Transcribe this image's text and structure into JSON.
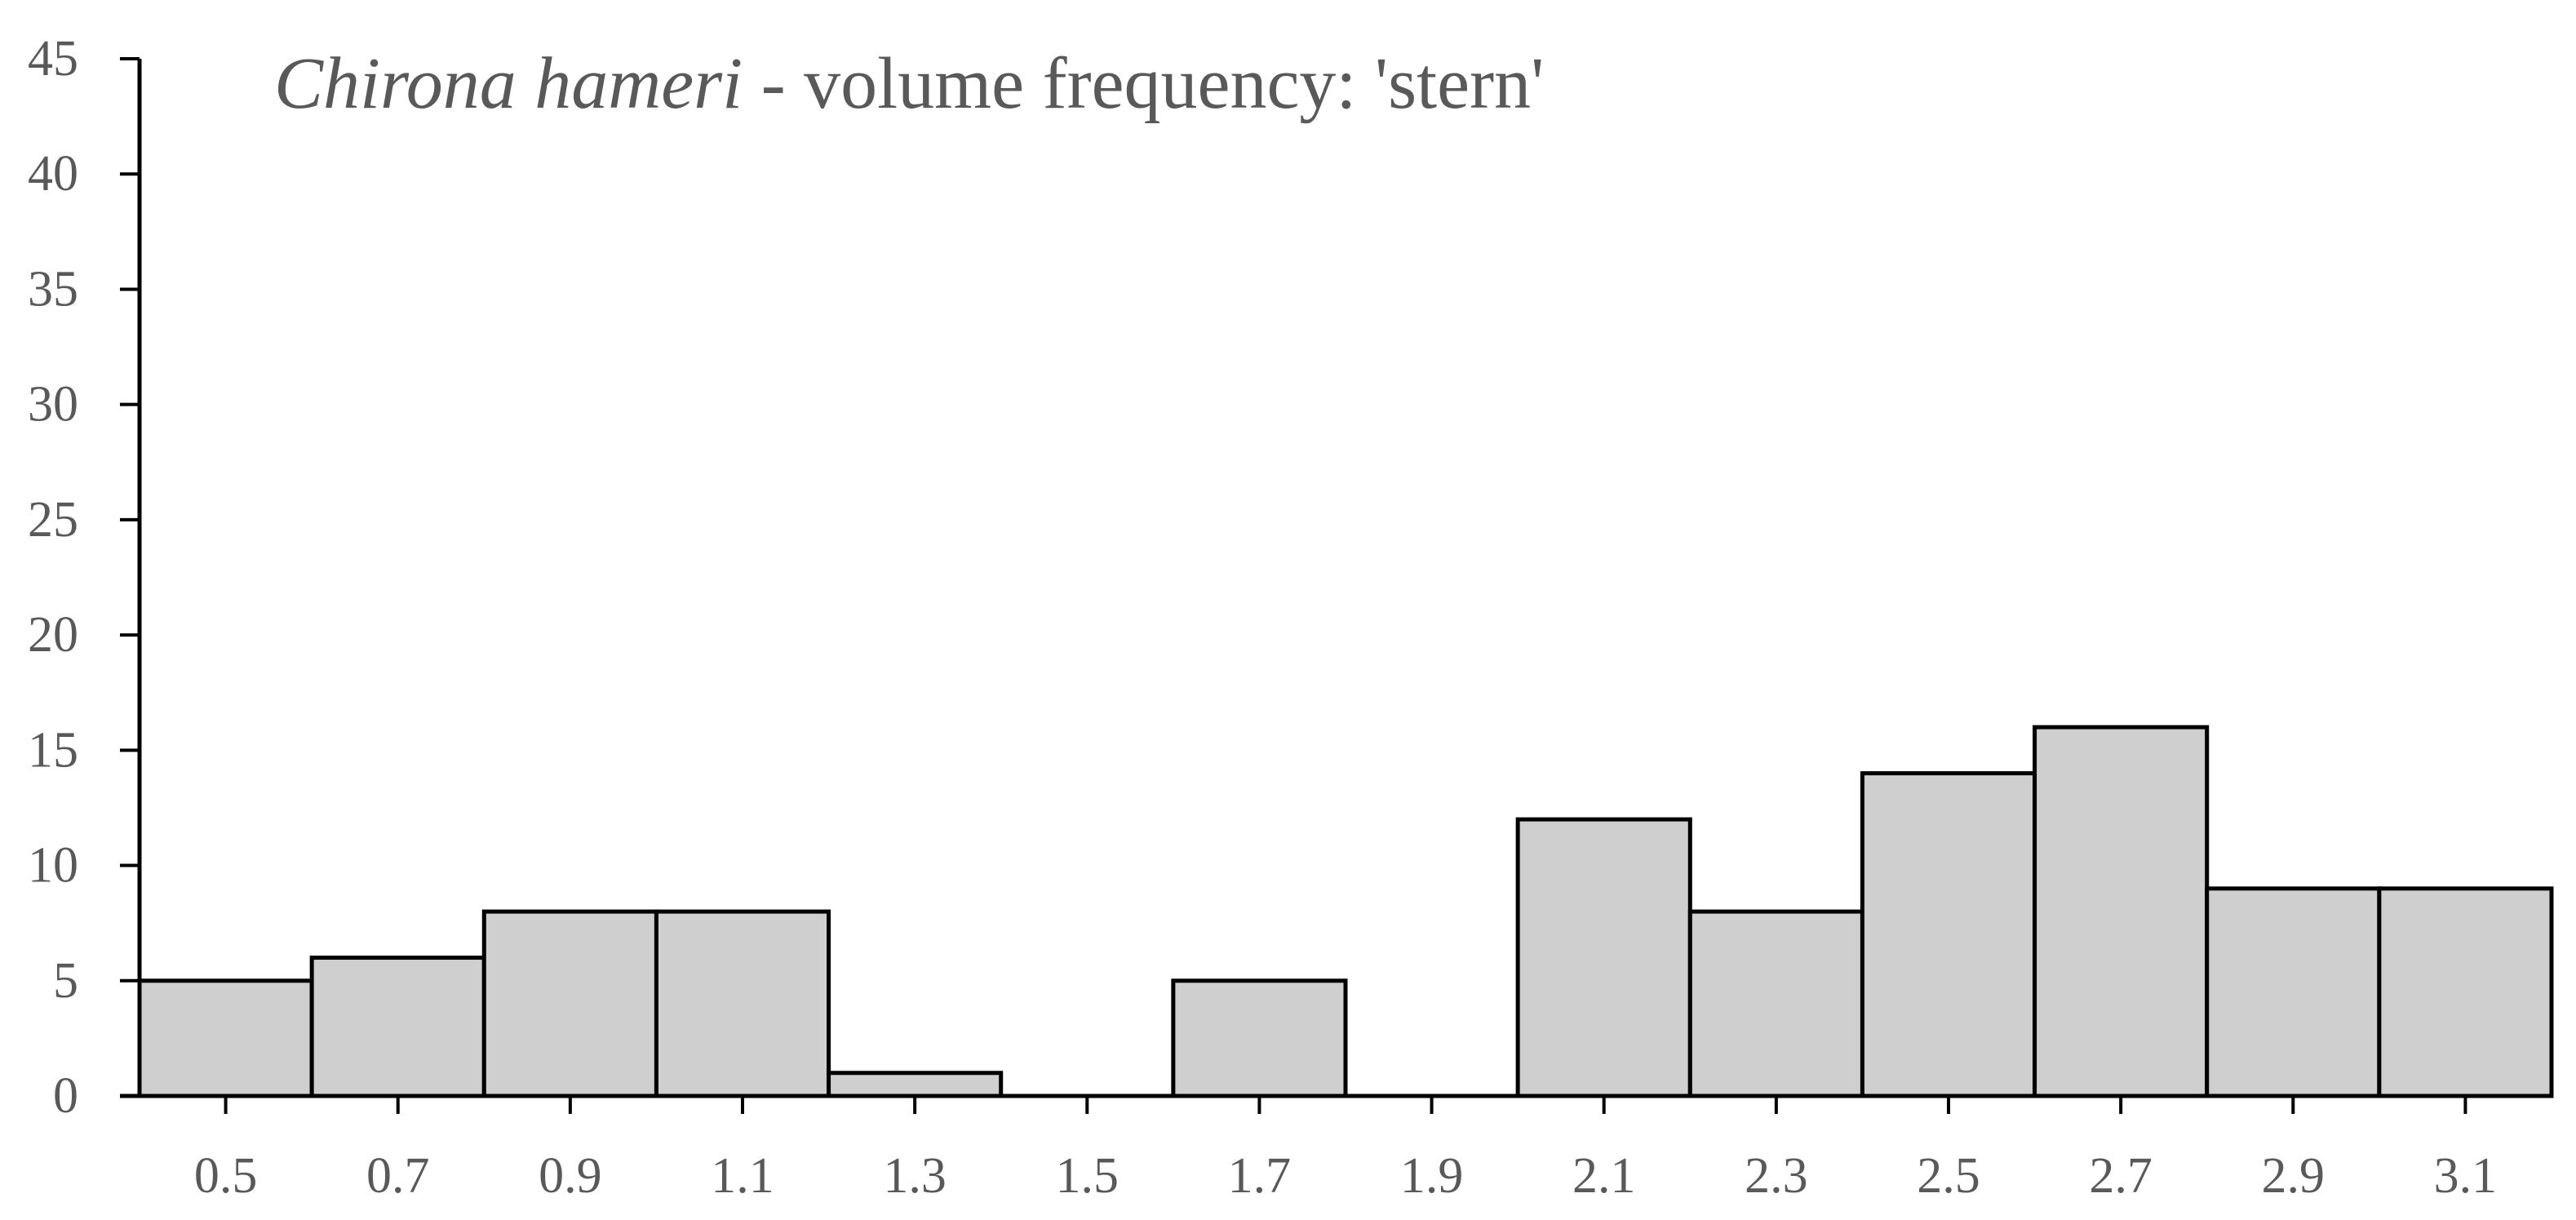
{
  "chart_data": {
    "type": "histogram",
    "title": {
      "species": "Chirona hameri",
      "text": " - volume frequency: 'stern'"
    },
    "bins": [
      0.4,
      0.6,
      0.8,
      1.0,
      1.2,
      1.4,
      1.6,
      1.8,
      2.0,
      2.2,
      2.4,
      2.6,
      2.8,
      3.0,
      3.2
    ],
    "values": [
      5,
      6,
      8,
      8,
      1,
      0,
      5,
      0,
      12,
      8,
      14,
      16,
      9,
      9
    ],
    "color": "#d0cfd0",
    "xlim": [
      0.4,
      3.2
    ],
    "xticks": [
      0.5,
      0.7,
      0.9,
      1.1,
      1.3,
      1.5,
      1.7,
      1.9,
      2.1,
      2.3,
      2.5,
      2.7,
      2.9,
      3.1
    ],
    "ylim": [
      0,
      45
    ],
    "yticks": [
      0,
      5,
      10,
      15,
      20,
      25,
      30,
      35,
      40,
      45
    ],
    "grid": false
  }
}
